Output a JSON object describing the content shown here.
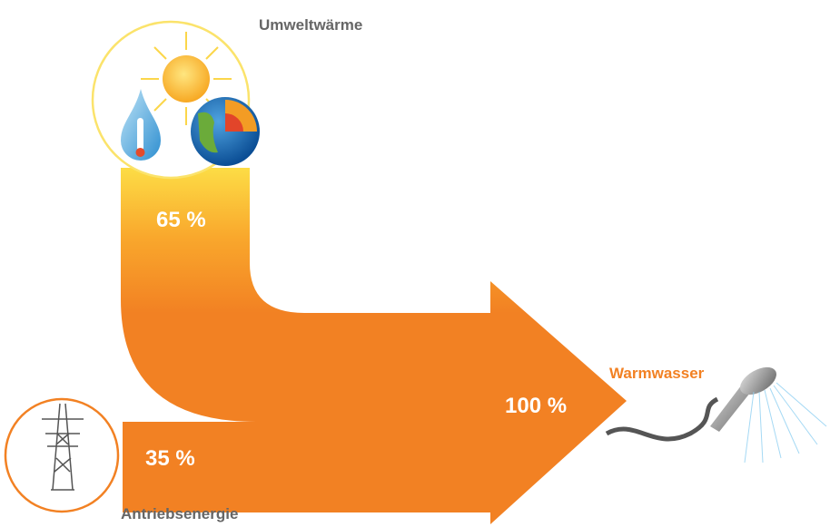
{
  "nodes": [
    {
      "label": "Umweltwärme",
      "share": "65 %"
    },
    {
      "label": "Antriebsenergie",
      "share": "35 %"
    },
    {
      "label": "Warmwasser",
      "share": "100 %"
    }
  ]
}
